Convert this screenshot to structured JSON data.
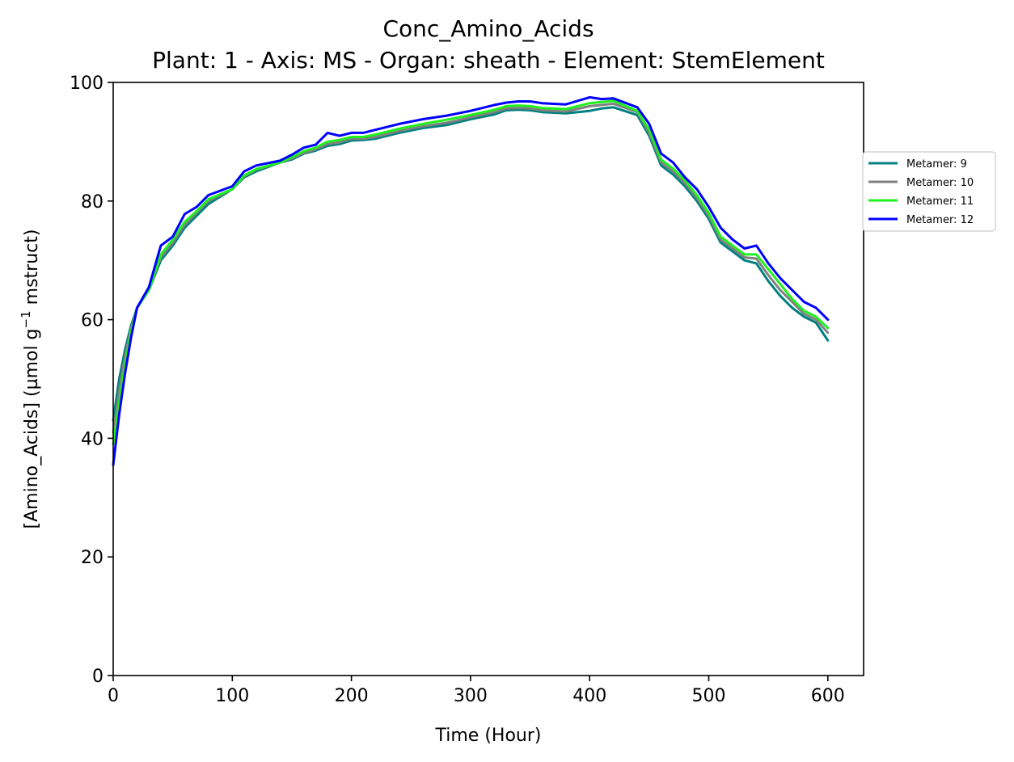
{
  "chart_data": {
    "type": "line",
    "title": "Conc_Amino_Acids",
    "subtitle": "Plant: 1 - Axis: MS - Organ: sheath - Element: StemElement",
    "xlabel": "Time (Hour)",
    "ylabel_main": "[Amino_Acids] (µmol g",
    "ylabel_sup": "−1",
    "ylabel_tail": " mstruct)",
    "xlim": [
      0,
      630
    ],
    "ylim": [
      0,
      100
    ],
    "x_ticks": [
      0,
      100,
      200,
      300,
      400,
      500,
      600
    ],
    "y_ticks": [
      0,
      20,
      40,
      60,
      80,
      100
    ],
    "legend_placement": "right, outside plot area",
    "grid": false,
    "x": [
      0,
      5,
      10,
      15,
      20,
      30,
      40,
      50,
      60,
      70,
      80,
      100,
      110,
      120,
      140,
      150,
      160,
      170,
      180,
      190,
      200,
      210,
      220,
      240,
      260,
      280,
      300,
      320,
      330,
      340,
      350,
      360,
      380,
      400,
      410,
      420,
      440,
      450,
      460,
      470,
      480,
      490,
      500,
      510,
      520,
      530,
      540,
      550,
      560,
      570,
      580,
      590,
      600
    ],
    "series": [
      {
        "name": "Metamer: 9",
        "color": "#008080",
        "values": [
          43,
          50,
          55,
          59,
          62,
          65,
          70,
          72.5,
          75.5,
          77.5,
          79.5,
          82,
          84,
          85,
          86.5,
          87,
          88,
          88.5,
          89.3,
          89.6,
          90.2,
          90.3,
          90.5,
          91.5,
          92.3,
          92.8,
          93.8,
          94.6,
          95.3,
          95.4,
          95.3,
          95,
          94.8,
          95.2,
          95.6,
          95.8,
          94.5,
          91,
          86,
          84.5,
          82.5,
          80,
          77,
          73,
          71.5,
          70,
          69.5,
          66.5,
          64,
          62,
          60.5,
          59.5,
          56.5
        ]
      },
      {
        "name": "Metamer: 10",
        "color": "#808080",
        "values": [
          41,
          48,
          54,
          58.5,
          62,
          65,
          70.5,
          73,
          76,
          78,
          80,
          82,
          84.2,
          85.3,
          86.5,
          87.2,
          88.1,
          88.7,
          89.6,
          89.9,
          90.5,
          90.5,
          90.8,
          91.8,
          92.6,
          93.2,
          94.1,
          95,
          95.6,
          95.7,
          95.6,
          95.3,
          95.1,
          96,
          96.2,
          96.4,
          95,
          91.5,
          86.5,
          85,
          83,
          80.5,
          77.5,
          73.5,
          72,
          70.5,
          70.3,
          67.5,
          65,
          63,
          61,
          60,
          57.8
        ]
      },
      {
        "name": "Metamer: 11",
        "color": "#1ef01e",
        "values": [
          39,
          46,
          52.5,
          58,
          62,
          65,
          71,
          73.5,
          76.5,
          78.3,
          80.3,
          82,
          84.3,
          85.4,
          86.5,
          87.4,
          88.4,
          89,
          90,
          90.3,
          90.8,
          90.8,
          91.2,
          92.2,
          93,
          93.7,
          94.5,
          95.4,
          96,
          96.1,
          96,
          95.7,
          95.5,
          96.5,
          96.7,
          96.9,
          95.2,
          92,
          87,
          85.5,
          83.5,
          81,
          78,
          74,
          72.5,
          71,
          71,
          68.5,
          66,
          63.5,
          61.5,
          60.5,
          58.6
        ]
      },
      {
        "name": "Metamer: 12",
        "color": "#0000ff",
        "values": [
          35.5,
          44,
          51,
          57,
          62,
          65.5,
          72.5,
          74,
          77.8,
          79,
          81,
          82.5,
          85,
          86,
          86.8,
          87.8,
          89,
          89.5,
          91.5,
          91,
          91.5,
          91.5,
          92,
          93,
          93.8,
          94.4,
          95.2,
          96.2,
          96.6,
          96.8,
          96.8,
          96.5,
          96.3,
          97.5,
          97.2,
          97.3,
          95.8,
          93,
          88,
          86.5,
          84,
          82,
          79,
          75.5,
          73.5,
          72,
          72.5,
          69.5,
          67,
          65,
          63,
          62,
          60
        ]
      }
    ]
  }
}
